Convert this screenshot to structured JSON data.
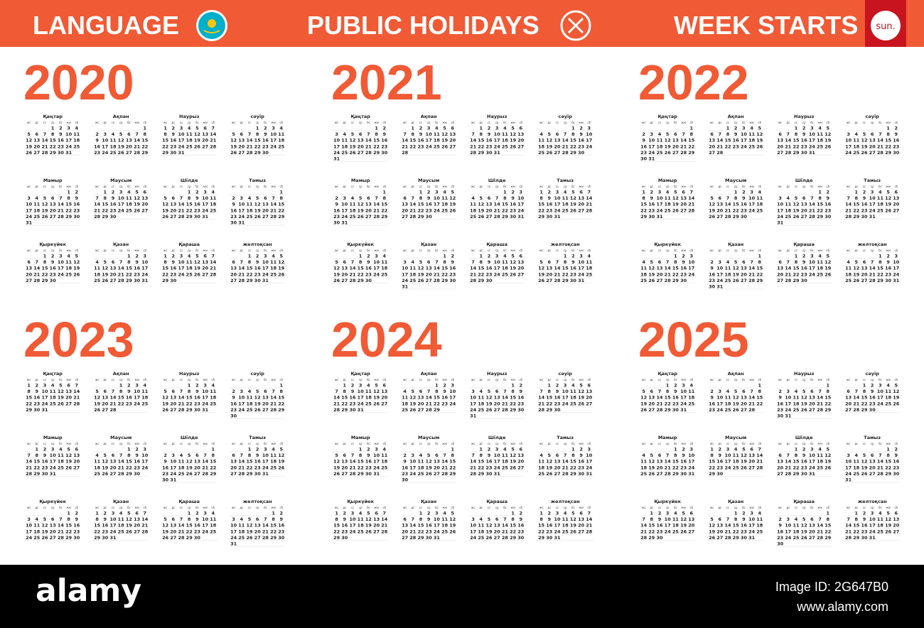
{
  "header": {
    "language": "LANGUAGE",
    "holidays": "PUBLIC HOLIDAYS",
    "week_starts": "WEEK STARTS",
    "week_start_day": "sun."
  },
  "month_names": [
    "Қаңтар",
    "Ақпан",
    "Наурыз",
    "сәуір",
    "Мамыр",
    "Маусым",
    "Шілде",
    "Тамыз",
    "Қыркүйек",
    "Қазан",
    "Қараша",
    "желтоқсан"
  ],
  "weekdays": [
    "жс",
    "дс",
    "сс",
    "ср",
    "бс",
    "жм",
    "сб"
  ],
  "days": [
    1,
    2,
    3,
    4,
    5,
    6,
    7,
    8,
    9,
    10,
    11,
    12,
    13,
    14,
    15,
    16,
    17,
    18,
    19,
    20,
    21,
    22,
    23,
    24,
    25,
    26,
    27,
    28,
    29,
    30,
    31
  ],
  "years": [
    {
      "year": 2020,
      "months": [
        [
          3,
          31
        ],
        [
          6,
          29
        ],
        [
          0,
          31
        ],
        [
          3,
          30
        ],
        [
          5,
          31
        ],
        [
          1,
          30
        ],
        [
          3,
          31
        ],
        [
          6,
          31
        ],
        [
          2,
          30
        ],
        [
          4,
          31
        ],
        [
          0,
          30
        ],
        [
          2,
          31
        ]
      ]
    },
    {
      "year": 2021,
      "months": [
        [
          5,
          31
        ],
        [
          1,
          28
        ],
        [
          1,
          31
        ],
        [
          4,
          30
        ],
        [
          6,
          31
        ],
        [
          2,
          30
        ],
        [
          4,
          31
        ],
        [
          0,
          31
        ],
        [
          3,
          30
        ],
        [
          5,
          31
        ],
        [
          1,
          30
        ],
        [
          3,
          31
        ]
      ]
    },
    {
      "year": 2022,
      "months": [
        [
          6,
          31
        ],
        [
          2,
          28
        ],
        [
          2,
          31
        ],
        [
          5,
          30
        ],
        [
          0,
          31
        ],
        [
          3,
          30
        ],
        [
          5,
          31
        ],
        [
          1,
          31
        ],
        [
          4,
          30
        ],
        [
          6,
          31
        ],
        [
          2,
          30
        ],
        [
          4,
          31
        ]
      ]
    },
    {
      "year": 2023,
      "months": [
        [
          0,
          31
        ],
        [
          3,
          28
        ],
        [
          3,
          31
        ],
        [
          6,
          30
        ],
        [
          1,
          31
        ],
        [
          4,
          30
        ],
        [
          6,
          31
        ],
        [
          2,
          31
        ],
        [
          5,
          30
        ],
        [
          0,
          31
        ],
        [
          3,
          30
        ],
        [
          5,
          31
        ]
      ]
    },
    {
      "year": 2024,
      "months": [
        [
          1,
          31
        ],
        [
          4,
          29
        ],
        [
          5,
          31
        ],
        [
          1,
          30
        ],
        [
          3,
          31
        ],
        [
          6,
          30
        ],
        [
          1,
          31
        ],
        [
          4,
          31
        ],
        [
          0,
          30
        ],
        [
          2,
          31
        ],
        [
          5,
          30
        ],
        [
          0,
          31
        ]
      ]
    },
    {
      "year": 2025,
      "months": [
        [
          3,
          31
        ],
        [
          6,
          28
        ],
        [
          6,
          31
        ],
        [
          2,
          30
        ],
        [
          4,
          31
        ],
        [
          0,
          30
        ],
        [
          2,
          31
        ],
        [
          5,
          31
        ],
        [
          1,
          30
        ],
        [
          3,
          31
        ],
        [
          6,
          30
        ],
        [
          1,
          31
        ]
      ]
    }
  ],
  "footer": {
    "brand": "alamy",
    "image_id": "Image ID: 2G647B0",
    "url": "www.alamy.com"
  }
}
